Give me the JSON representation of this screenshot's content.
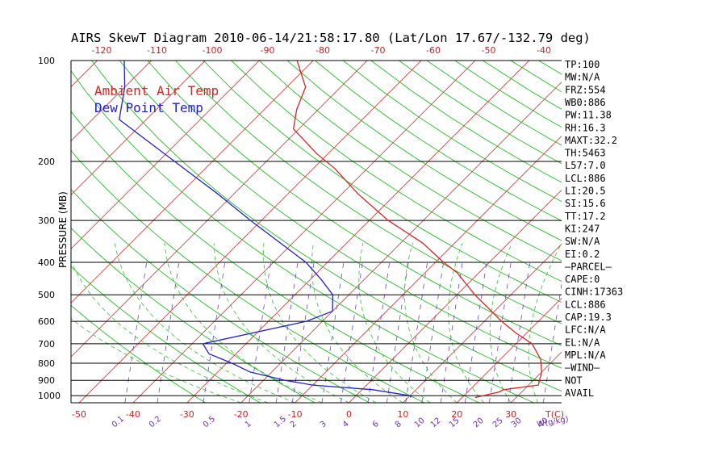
{
  "chart_data": {
    "type": "line",
    "title": "AIRS SkewT Diagram 2010-06-14/21:58:17.80 (Lat/Lon 17.67/-132.79 deg)",
    "ylabel": "PRESSURE (MB)",
    "xlabel": "T(C)",
    "mixing_ratio_label": "W(g/kg)",
    "ylim": [
      1050,
      100
    ],
    "xlim": [
      -50,
      40
    ],
    "y_scale": "log",
    "pressure_ticks": [
      100,
      200,
      300,
      400,
      500,
      600,
      700,
      800,
      900,
      1000
    ],
    "bottom_temp_ticks": [
      -50,
      -40,
      -30,
      -20,
      -10,
      0,
      10,
      20,
      30
    ],
    "top_temp_ticks": [
      -120,
      -110,
      -100,
      -90,
      -80,
      -70,
      -60,
      -50,
      -40
    ],
    "mixing_ratio_ticks": [
      "0.1",
      "0.2",
      "0.5",
      "1",
      "1.5",
      "2",
      "3",
      "4",
      "6",
      "8",
      "10",
      "12",
      "15",
      "20",
      "25",
      "30",
      "40"
    ],
    "legend": [
      {
        "name": "Ambient Air Temp",
        "color": "#e02020"
      },
      {
        "name": "Dew Point Temp",
        "color": "#2020d0"
      }
    ],
    "legend_position": "top-left",
    "series": [
      {
        "name": "Ambient Air Temp",
        "color": "#e02020",
        "points": [
          {
            "p": 1013,
            "t": 22.4
          },
          {
            "p": 1000,
            "t": 23.5
          },
          {
            "p": 975,
            "t": 25.8
          },
          {
            "p": 960,
            "t": 26.2
          },
          {
            "p": 930,
            "t": 31.8
          },
          {
            "p": 850,
            "t": 30.0
          },
          {
            "p": 780,
            "t": 27.5
          },
          {
            "p": 700,
            "t": 23.0
          },
          {
            "p": 650,
            "t": 18.0
          },
          {
            "p": 600,
            "t": 13.2
          },
          {
            "p": 500,
            "t": 3.3
          },
          {
            "p": 430,
            "t": -4.0
          },
          {
            "p": 400,
            "t": -8.5
          },
          {
            "p": 350,
            "t": -16.0
          },
          {
            "p": 300,
            "t": -26.5
          },
          {
            "p": 250,
            "t": -37.0
          },
          {
            "p": 210,
            "t": -46.0
          },
          {
            "p": 190,
            "t": -52.0
          },
          {
            "p": 160,
            "t": -61.0
          },
          {
            "p": 140,
            "t": -64.0
          },
          {
            "p": 120,
            "t": -66.5
          },
          {
            "p": 100,
            "t": -73.0
          }
        ]
      },
      {
        "name": "Dew Point Temp",
        "color": "#2020d0",
        "points": [
          {
            "p": 1013,
            "t": 10.5
          },
          {
            "p": 1000,
            "t": 10.0
          },
          {
            "p": 960,
            "t": 2.0
          },
          {
            "p": 930,
            "t": -10.0
          },
          {
            "p": 900,
            "t": -16.0
          },
          {
            "p": 850,
            "t": -24.0
          },
          {
            "p": 800,
            "t": -29.0
          },
          {
            "p": 750,
            "t": -35.0
          },
          {
            "p": 700,
            "t": -38.0
          },
          {
            "p": 600,
            "t": -23.0
          },
          {
            "p": 560,
            "t": -20.0
          },
          {
            "p": 500,
            "t": -23.0
          },
          {
            "p": 450,
            "t": -28.0
          },
          {
            "p": 400,
            "t": -34.0
          },
          {
            "p": 300,
            "t": -52.0
          },
          {
            "p": 250,
            "t": -63.0
          },
          {
            "p": 200,
            "t": -77.0
          },
          {
            "p": 150,
            "t": -95.0
          },
          {
            "p": 120,
            "t": -100.0
          },
          {
            "p": 100,
            "t": -105.0
          }
        ]
      }
    ],
    "indices": [
      "TP:100",
      "MW:N/A",
      "FRZ:554",
      "WB0:886",
      "PW:11.38",
      "RH:16.3",
      "MAXT:32.2",
      "TH:5463",
      "L57:7.0",
      "LCL:886",
      "LI:20.5",
      "SI:15.6",
      "TT:17.2",
      "KI:247",
      "SW:N/A",
      "EI:0.2",
      "–PARCEL–",
      "CAPE:0",
      "CINH:17363",
      "LCL:886",
      "CAP:19.3",
      "LFC:N/A",
      "EL:N/A",
      "MPL:N/A",
      "–WIND–",
      "NOT",
      "AVAIL"
    ]
  }
}
